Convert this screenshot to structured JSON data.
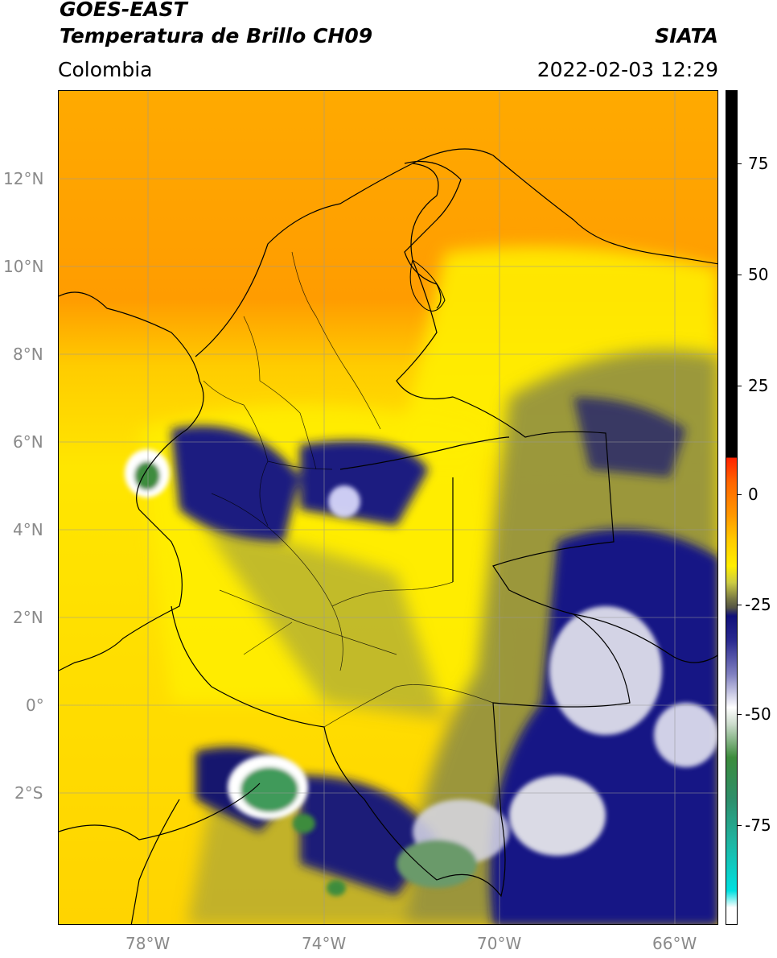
{
  "header": {
    "satellite": "GOES-EAST",
    "product": "Temperatura de Brillo CH09",
    "brand": "SIATA",
    "region": "Colombia",
    "timestamp": "2022-02-03 12:29"
  },
  "map": {
    "lat_labels": [
      "12°N",
      "10°N",
      "8°N",
      "6°N",
      "4°N",
      "2°N",
      "0°",
      "2°S"
    ],
    "lon_labels": [
      "78°W",
      "74°W",
      "70°W",
      "66°W"
    ]
  },
  "colorbar": {
    "labels": [
      "75",
      "50",
      "25",
      "0",
      "-25",
      "-50",
      "-75"
    ],
    "colors": {
      "black": "#000000",
      "red": "#ff2200",
      "orange": "#ff9900",
      "yellow": "#ffee00",
      "olive": "#777744",
      "navy": "#10107a",
      "white": "#ffffff",
      "green": "#3c8c3c",
      "teal": "#20b4a0",
      "cyan": "#00e0e0"
    }
  }
}
